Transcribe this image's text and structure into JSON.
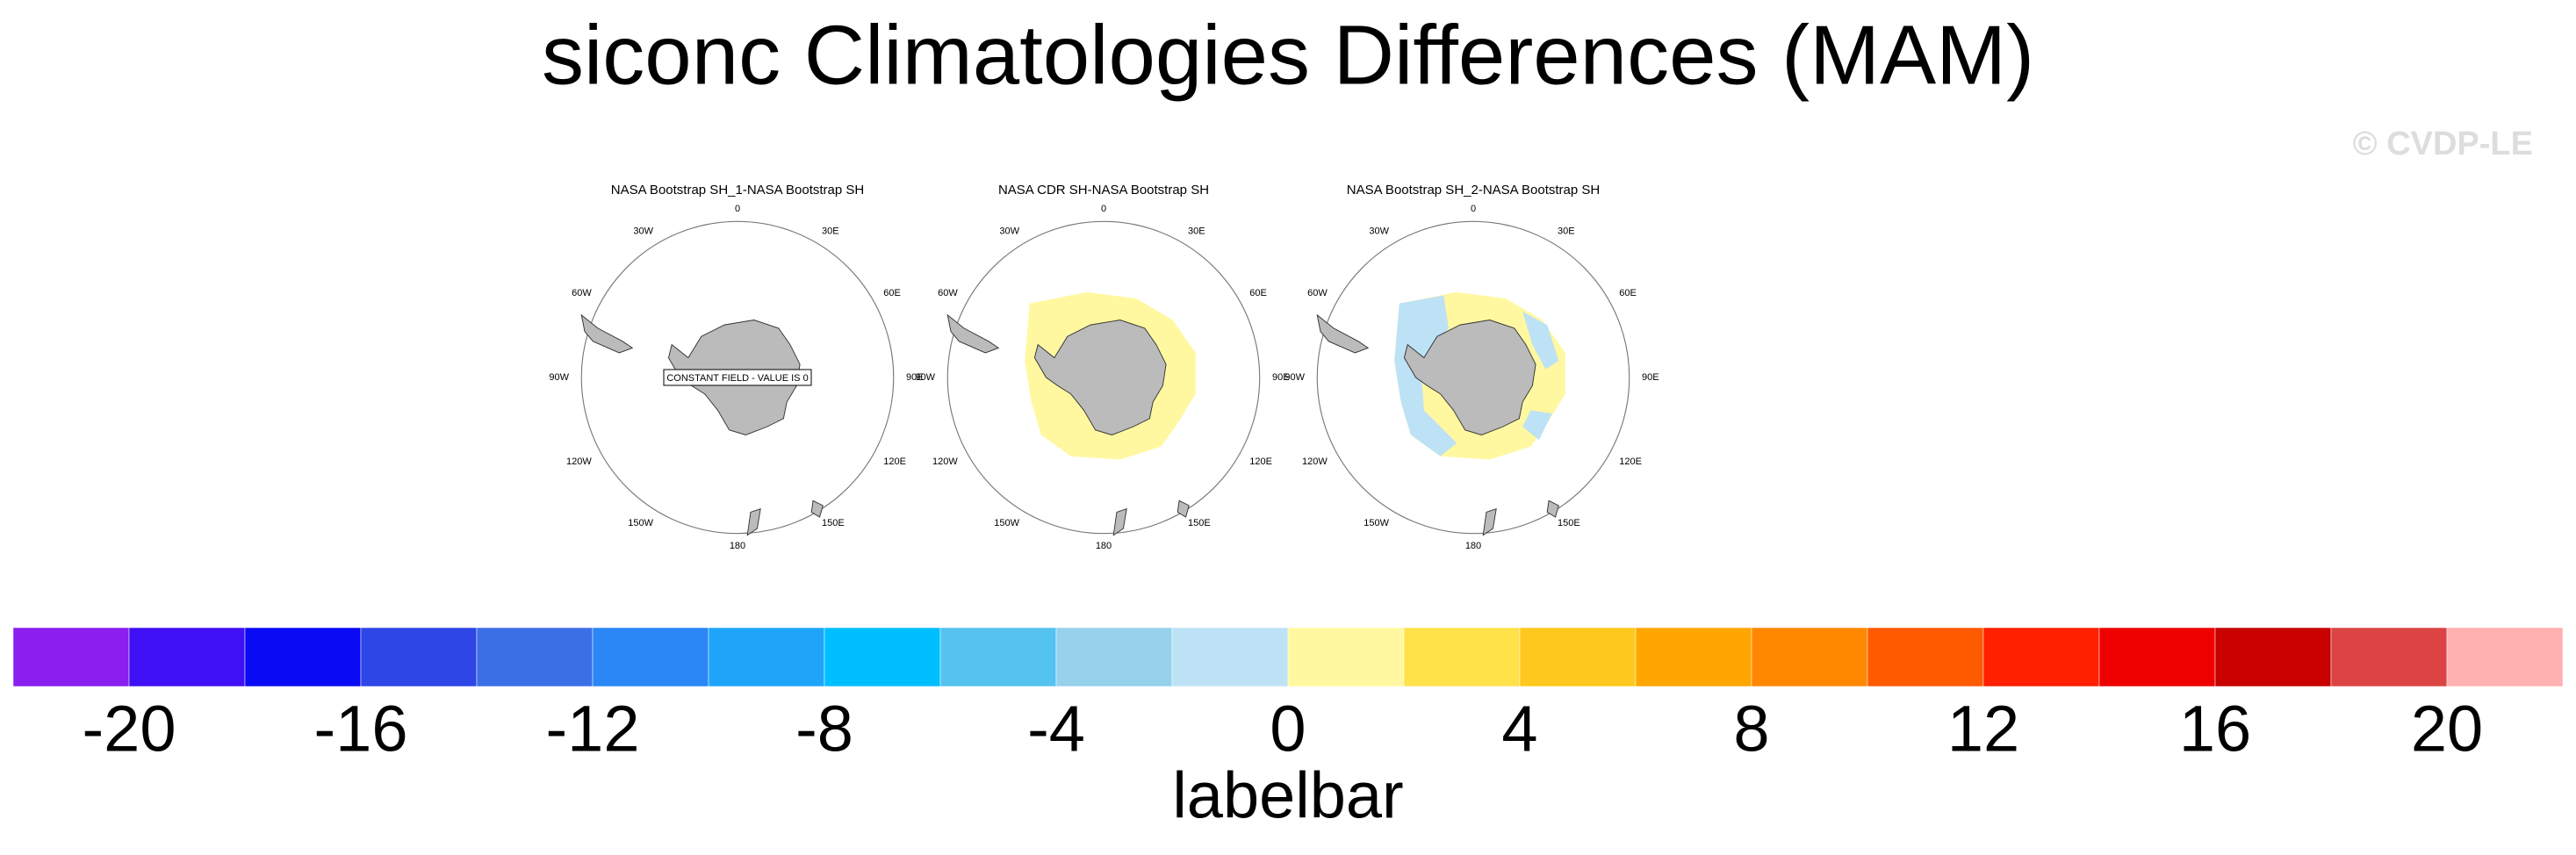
{
  "title": "siconc Climatologies Differences (MAM)",
  "watermark": "© CVDP-LE",
  "panels": [
    {
      "title": "NASA Bootstrap SH_1-NASA Bootstrap SH",
      "annotation": "CONSTANT FIELD - VALUE IS 0"
    },
    {
      "title": "NASA CDR SH-NASA Bootstrap SH"
    },
    {
      "title": "NASA Bootstrap SH_2-NASA Bootstrap SH"
    }
  ],
  "longitude_labels": [
    "0",
    "30E",
    "60E",
    "90E",
    "120E",
    "150E",
    "180",
    "150W",
    "120W",
    "90W",
    "60W",
    "30W"
  ],
  "labelbar": {
    "colors": [
      "#8a1ff0",
      "#4010f5",
      "#0a0af5",
      "#2f46e6",
      "#3b6fe6",
      "#2a87f5",
      "#1ea5fa",
      "#00bfff",
      "#55c3f0",
      "#96d2ec",
      "#bde2f5",
      "#fff8a0",
      "#ffe14a",
      "#ffc81e",
      "#ffa600",
      "#ff8800",
      "#ff5a00",
      "#ff2000",
      "#ee0000",
      "#c80000",
      "#dc4444",
      "#ffb0b0"
    ],
    "lim": [
      -22,
      22
    ],
    "ticks": [
      -20,
      -16,
      -12,
      -8,
      -4,
      0,
      4,
      8,
      12,
      16,
      20
    ],
    "label": "labelbar"
  }
}
